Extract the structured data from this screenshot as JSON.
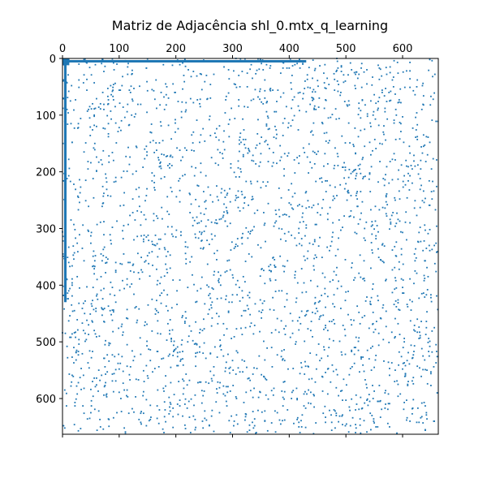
{
  "chart_data": {
    "type": "heatmap",
    "subtype": "sparsity-pattern",
    "title": "Matriz de Adjacência shl_0.mtx_q_learning",
    "xlabel": "",
    "ylabel": "",
    "xlim": [
      0,
      663
    ],
    "ylim": [
      663,
      0
    ],
    "x_ticks": [
      0,
      100,
      200,
      300,
      400,
      500,
      600
    ],
    "y_ticks": [
      0,
      100,
      200,
      300,
      400,
      500,
      600
    ],
    "x_axis_position": "top",
    "grid": false,
    "color": "#1f77b4",
    "dense_features": [
      {
        "kind": "row",
        "row": 5,
        "from": 0,
        "to": 430
      },
      {
        "kind": "column",
        "col": 5,
        "from": 0,
        "to": 430
      },
      {
        "kind": "block",
        "row_from": 0,
        "row_to": 12,
        "col_from": 0,
        "col_to": 12
      }
    ],
    "approx_nonzero_scatter": 2600
  }
}
